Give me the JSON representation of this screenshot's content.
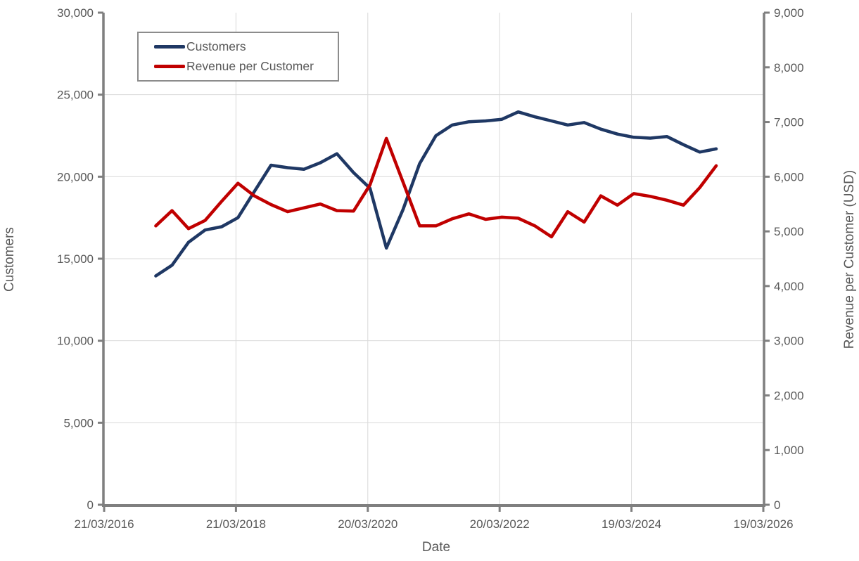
{
  "chart_data": {
    "type": "line",
    "title": "",
    "xlabel": "Date",
    "ylabel_left": "Customers",
    "ylabel_right": "Revenue per Customer (USD)",
    "grid": true,
    "legend_position": "top-left-inside",
    "x_axis": {
      "start": "2016-03-21",
      "end": "2026-03-19",
      "ticks": [
        {
          "label": "21/03/2016",
          "date": "2016-03-21"
        },
        {
          "label": "21/03/2018",
          "date": "2018-03-21"
        },
        {
          "label": "20/03/2020",
          "date": "2020-03-20"
        },
        {
          "label": "20/03/2022",
          "date": "2022-03-20"
        },
        {
          "label": "19/03/2024",
          "date": "2024-03-19"
        },
        {
          "label": "19/03/2026",
          "date": "2026-03-19"
        }
      ]
    },
    "y_left": {
      "min": 0,
      "max": 30000,
      "tick_values": [
        0,
        5000,
        10000,
        15000,
        20000,
        25000,
        30000
      ],
      "tick_labels": [
        "0",
        "5,000",
        "10,000",
        "15,000",
        "20,000",
        "25,000",
        "30,000"
      ]
    },
    "y_right": {
      "min": 0,
      "max": 9000,
      "tick_values": [
        0,
        1000,
        2000,
        3000,
        4000,
        5000,
        6000,
        7000,
        8000,
        9000
      ],
      "tick_labels": [
        "0",
        "1,000",
        "2,000",
        "3,000",
        "4,000",
        "5,000",
        "6,000",
        "7,000",
        "8,000",
        "9,000"
      ]
    },
    "dates": [
      "2017-01-01",
      "2017-04-01",
      "2017-07-01",
      "2017-10-01",
      "2018-01-01",
      "2018-04-01",
      "2018-07-01",
      "2018-10-01",
      "2019-01-01",
      "2019-04-01",
      "2019-07-01",
      "2019-10-01",
      "2020-01-01",
      "2020-04-01",
      "2020-07-01",
      "2020-10-01",
      "2021-01-01",
      "2021-04-01",
      "2021-07-01",
      "2021-10-01",
      "2022-01-01",
      "2022-04-01",
      "2022-07-01",
      "2022-10-01",
      "2023-01-01",
      "2023-04-01",
      "2023-07-01",
      "2023-10-01",
      "2024-01-01",
      "2024-04-01",
      "2024-07-01",
      "2024-10-01",
      "2025-01-01",
      "2025-04-01",
      "2025-07-01"
    ],
    "series": [
      {
        "name": "Customers",
        "axis": "left",
        "color": "#1F3864",
        "values": [
          13950,
          14600,
          16000,
          16750,
          16950,
          17500,
          19100,
          20700,
          20550,
          20450,
          20850,
          21400,
          20250,
          19300,
          15650,
          18000,
          20800,
          22500,
          23150,
          23350,
          23400,
          23500,
          23950,
          23650,
          23400,
          23150,
          23300,
          22900,
          22600,
          22400,
          22350,
          22450,
          21950,
          21500,
          21700
        ]
      },
      {
        "name": "Revenue per Customer",
        "axis": "right",
        "color": "#C00000",
        "values": [
          5100,
          5380,
          5050,
          5200,
          5550,
          5880,
          5650,
          5490,
          5360,
          5430,
          5500,
          5380,
          5370,
          5850,
          6700,
          5900,
          5100,
          5100,
          5230,
          5320,
          5220,
          5260,
          5240,
          5100,
          4900,
          5360,
          5170,
          5650,
          5480,
          5690,
          5640,
          5570,
          5480,
          5800,
          6200
        ]
      }
    ]
  },
  "colors": {
    "customers_line": "#1F3864",
    "revenue_line": "#C00000",
    "gridline": "#D9D9D9",
    "axis_line": "#7F7F7F",
    "text": "#595959"
  }
}
